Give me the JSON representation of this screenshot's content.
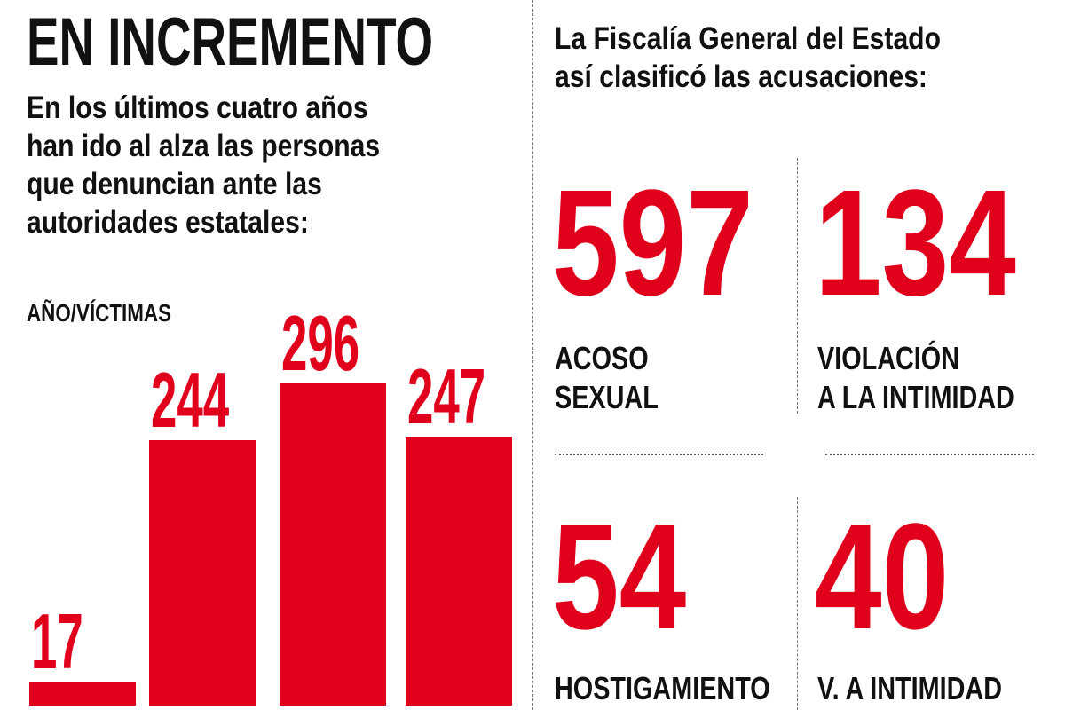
{
  "left": {
    "title": "EN INCREMENTO",
    "subtitle_lines": [
      "En los últimos cuatro años",
      "han ido al alza las personas",
      "que denuncian ante las",
      "autoridades estatales:"
    ]
  },
  "right": {
    "subtitle_lines": [
      "La Fiscalía General del Estado",
      "así clasificó las acusaciones:"
    ],
    "stats": [
      {
        "value": "597",
        "label_lines": [
          "ACOSO",
          "SEXUAL"
        ]
      },
      {
        "value": "134",
        "label_lines": [
          "VIOLACIÓN",
          "A LA INTIMIDAD"
        ]
      },
      {
        "value": "54",
        "label_lines": [
          "HOSTIGAMIENTO"
        ]
      },
      {
        "value": "40",
        "label_lines": [
          "V. A INTIMIDAD"
        ]
      }
    ]
  },
  "chart_data": {
    "type": "bar",
    "title": "",
    "ylabel": "AÑO/VÍCTIMAS",
    "values": [
      17,
      244,
      296,
      247
    ],
    "data_labels": [
      "17",
      "244",
      "296",
      "247"
    ],
    "color": "#e0001b"
  }
}
